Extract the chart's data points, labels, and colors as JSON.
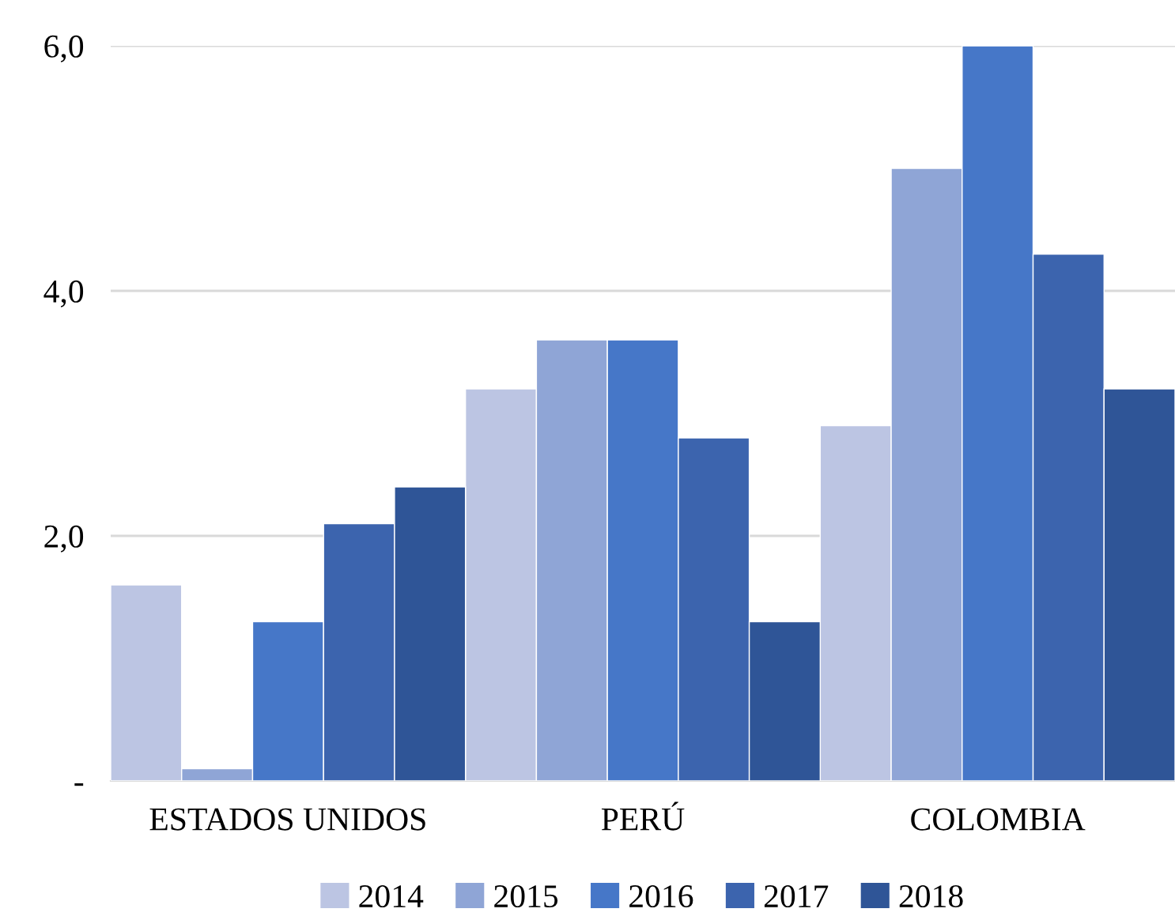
{
  "chart_data": {
    "type": "bar",
    "categories": [
      "ESTADOS UNIDOS",
      "PERÚ",
      "COLOMBIA"
    ],
    "series": [
      {
        "name": "2014",
        "color": "#bcc5e3",
        "values": [
          1.6,
          3.2,
          2.9
        ]
      },
      {
        "name": "2015",
        "color": "#8fa5d6",
        "values": [
          0.1,
          3.6,
          5.0
        ]
      },
      {
        "name": "2016",
        "color": "#4677c8",
        "values": [
          1.3,
          3.6,
          6.0
        ]
      },
      {
        "name": "2017",
        "color": "#3c64ae",
        "values": [
          2.1,
          2.8,
          4.3
        ]
      },
      {
        "name": "2018",
        "color": "#2f5597",
        "values": [
          2.4,
          1.3,
          3.2
        ]
      }
    ],
    "ylim": [
      0,
      6
    ],
    "yticks": [
      {
        "value": 0,
        "label": "-"
      },
      {
        "value": 2,
        "label": "2,0"
      },
      {
        "value": 4,
        "label": "4,0"
      },
      {
        "value": 6,
        "label": "6,0"
      }
    ],
    "grid": "y",
    "legend": "bottom"
  }
}
